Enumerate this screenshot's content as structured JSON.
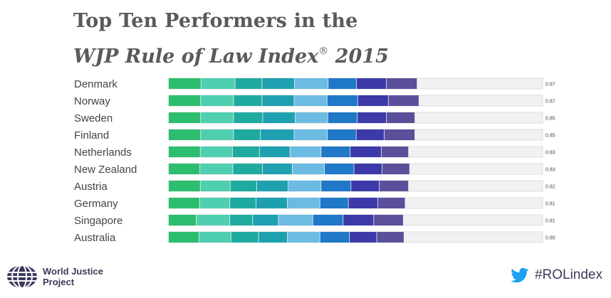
{
  "title": {
    "line1": "Top Ten Performers in the",
    "line2": "WJP Rule of Law Index",
    "registered": "®",
    "year": "2015"
  },
  "chart_data": {
    "type": "bar",
    "orientation": "horizontal-stacked",
    "max_value": 1.0,
    "categories": [
      "Denmark",
      "Norway",
      "Sweden",
      "Finland",
      "Netherlands",
      "New Zealand",
      "Austria",
      "Germany",
      "Singapore",
      "Australia"
    ],
    "overall_scores": [
      0.87,
      0.87,
      0.85,
      0.85,
      0.83,
      0.83,
      0.82,
      0.81,
      0.81,
      0.8
    ],
    "score_labels": [
      "0.87",
      "0.87",
      "0.85",
      "0.85",
      "0.83",
      "0.83",
      "0.82",
      "0.81",
      "0.81",
      "0.80"
    ],
    "segment_colors": [
      "#2dbd6e",
      "#4fcfb0",
      "#1faaa0",
      "#1fa0b0",
      "#6cbbe3",
      "#1f78c8",
      "#3b3aa8",
      "#5b4f9b"
    ],
    "remainder_color": "#f1f1f1",
    "segments": [
      [
        0.087,
        0.091,
        0.072,
        0.087,
        0.09,
        0.076,
        0.08,
        0.082
      ],
      [
        0.086,
        0.088,
        0.076,
        0.086,
        0.088,
        0.082,
        0.082,
        0.082
      ],
      [
        0.086,
        0.088,
        0.078,
        0.087,
        0.087,
        0.079,
        0.078,
        0.076
      ],
      [
        0.086,
        0.088,
        0.072,
        0.09,
        0.089,
        0.077,
        0.075,
        0.082
      ],
      [
        0.085,
        0.086,
        0.072,
        0.082,
        0.083,
        0.078,
        0.083,
        0.073
      ],
      [
        0.084,
        0.088,
        0.079,
        0.08,
        0.086,
        0.079,
        0.075,
        0.074
      ],
      [
        0.085,
        0.08,
        0.071,
        0.084,
        0.088,
        0.08,
        0.076,
        0.078
      ],
      [
        0.083,
        0.081,
        0.07,
        0.084,
        0.087,
        0.076,
        0.079,
        0.073
      ],
      [
        0.074,
        0.09,
        0.061,
        0.069,
        0.092,
        0.081,
        0.082,
        0.079
      ],
      [
        0.082,
        0.085,
        0.074,
        0.077,
        0.087,
        0.079,
        0.073,
        0.073
      ]
    ],
    "legend": "none",
    "grid": false
  },
  "footer": {
    "org_name_line1": "World Justice",
    "org_name_line2": "Project",
    "hashtag": "#ROLindex",
    "logo_icon": "wjp-globe-logo-icon",
    "hashtag_icon": "twitter-bird-icon",
    "brand_color": "#3b3b5c",
    "twitter_color": "#1da1f2"
  }
}
